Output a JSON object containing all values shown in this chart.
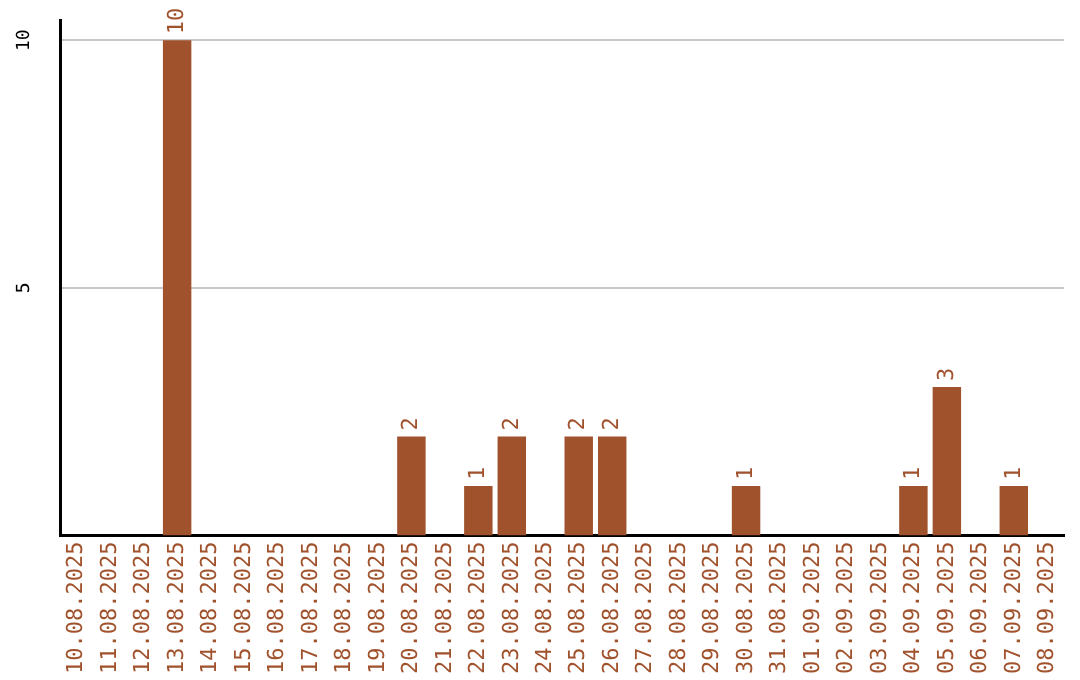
{
  "chart_data": {
    "type": "bar",
    "categories": [
      "10.08.2025",
      "11.08.2025",
      "12.08.2025",
      "13.08.2025",
      "14.08.2025",
      "15.08.2025",
      "16.08.2025",
      "17.08.2025",
      "18.08.2025",
      "19.08.2025",
      "20.08.2025",
      "21.08.2025",
      "22.08.2025",
      "23.08.2025",
      "24.08.2025",
      "25.08.2025",
      "26.08.2025",
      "27.08.2025",
      "28.08.2025",
      "29.08.2025",
      "30.08.2025",
      "31.08.2025",
      "01.09.2025",
      "02.09.2025",
      "03.09.2025",
      "04.09.2025",
      "05.09.2025",
      "06.09.2025",
      "07.09.2025",
      "08.09.2025"
    ],
    "values": [
      0,
      0,
      0,
      10,
      0,
      0,
      0,
      0,
      0,
      0,
      2,
      0,
      1,
      2,
      0,
      2,
      2,
      0,
      0,
      0,
      1,
      0,
      0,
      0,
      0,
      1,
      3,
      0,
      1,
      0
    ],
    "value_labels": [
      null,
      null,
      null,
      "10",
      null,
      null,
      null,
      null,
      null,
      null,
      "2",
      null,
      "1",
      "2",
      null,
      "2",
      "2",
      null,
      null,
      null,
      "1",
      null,
      null,
      null,
      null,
      "1",
      "3",
      null,
      "1",
      null
    ],
    "color": "#a0522d",
    "ylim": [
      0,
      10.4
    ],
    "yticks": [
      5,
      10
    ],
    "grid": "y",
    "legend": false
  }
}
